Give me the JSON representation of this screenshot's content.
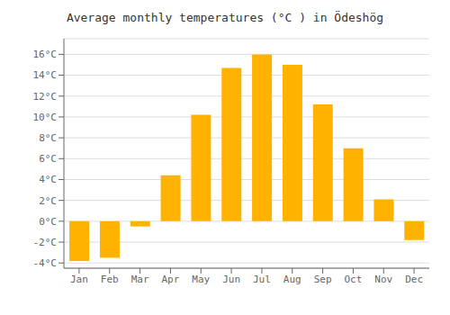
{
  "chart_data": {
    "type": "bar",
    "title": "Average monthly temperatures (°C ) in Ödeshög",
    "categories": [
      "Jan",
      "Feb",
      "Mar",
      "Apr",
      "May",
      "Jun",
      "Jul",
      "Aug",
      "Sep",
      "Oct",
      "Nov",
      "Dec"
    ],
    "values": [
      -3.8,
      -3.5,
      -0.5,
      4.4,
      10.2,
      14.7,
      16.0,
      15.0,
      11.2,
      7.0,
      2.1,
      -1.8
    ],
    "color": "#FFB300",
    "ylim": [
      -4.5,
      17.5
    ],
    "yticks": [
      {
        "value": -4,
        "label": "-4°C"
      },
      {
        "value": -2,
        "label": "-2°C"
      },
      {
        "value": 0,
        "label": "0°C"
      },
      {
        "value": 2,
        "label": "2°C"
      },
      {
        "value": 4,
        "label": "4°C"
      },
      {
        "value": 6,
        "label": "6°C"
      },
      {
        "value": 8,
        "label": "8°C"
      },
      {
        "value": 10,
        "label": "10°C"
      },
      {
        "value": 12,
        "label": "12°C"
      },
      {
        "value": 14,
        "label": "14°C"
      },
      {
        "value": 16,
        "label": "16°C"
      }
    ],
    "grid": true
  }
}
